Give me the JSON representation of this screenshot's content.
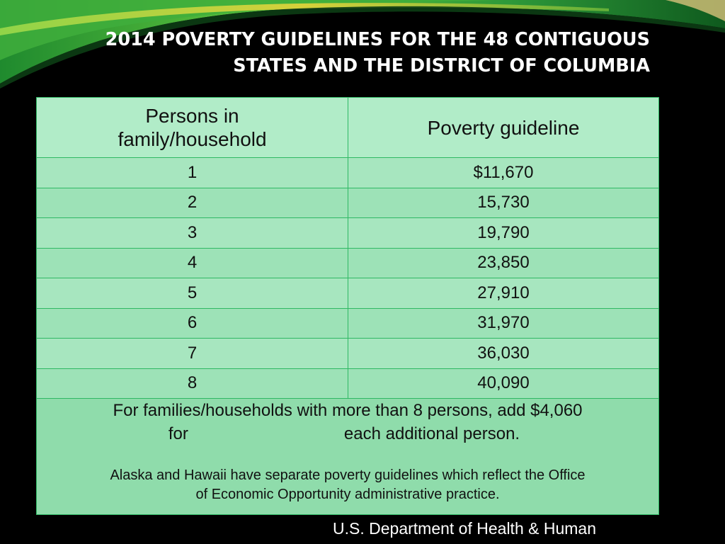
{
  "slide": {
    "title_line1": "2014 POVERTY GUIDELINES FOR THE 48 CONTIGUOUS",
    "title_line2": "STATES AND THE DISTRICT OF COLUMBIA",
    "source": "U.S. Department of Health & Human"
  },
  "table": {
    "headers": [
      "Persons in family/household",
      "Poverty guideline"
    ],
    "header_col1_line1": "Persons in",
    "header_col1_line2": "family/household",
    "rows": [
      {
        "persons": "1",
        "guideline": "$11,670"
      },
      {
        "persons": "2",
        "guideline": "15,730"
      },
      {
        "persons": "3",
        "guideline": "19,790"
      },
      {
        "persons": "4",
        "guideline": "23,850"
      },
      {
        "persons": "5",
        "guideline": "27,910"
      },
      {
        "persons": "6",
        "guideline": "31,970"
      },
      {
        "persons": "7",
        "guideline": "36,030"
      },
      {
        "persons": "8",
        "guideline": "40,090"
      }
    ],
    "footer_line1": "For families/households with more than 8 persons, add $4,060",
    "footer_line2_a": "for",
    "footer_line2_b": "each additional person.",
    "footer_note_line1": "Alaska and Hawaii have separate poverty guidelines which reflect the Office",
    "footer_note_line2": "of  Economic Opportunity administrative practice."
  },
  "colors": {
    "background": "#000000",
    "table_cell": "#a7e6bf",
    "table_border": "#2fb864",
    "swoosh_green": "#3cb54a",
    "swoosh_yellow": "#e6d43a"
  }
}
